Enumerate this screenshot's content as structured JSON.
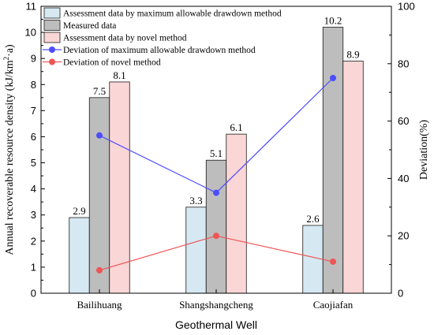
{
  "chart_data": {
    "type": "bar",
    "categories": [
      "Bailihuang",
      "Shangshangcheng",
      "Caojiafan"
    ],
    "xlabel": "Geothermal Well",
    "ylabel": "Annual recoverable resource density",
    "ylabel_unit_base": "kJ/km",
    "ylabel_unit_sup": "2",
    "ylabel_unit_tail": "·a",
    "y2label": "Deviation(%)",
    "ylim": [
      0,
      11
    ],
    "y2lim": [
      0,
      100
    ],
    "yticks": [
      "0",
      "1",
      "2",
      "3",
      "4",
      "5",
      "6",
      "7",
      "8",
      "9",
      "10",
      "11"
    ],
    "y2ticks": [
      "0",
      "20",
      "40",
      "60",
      "80",
      "100"
    ],
    "grid": false,
    "legend_position": "top-left",
    "bar_series": [
      {
        "name": "Assessment data by maximum allowable drawdown method",
        "values": [
          2.9,
          3.3,
          2.6
        ],
        "labels": [
          "2.9",
          "3.3",
          "2.6"
        ],
        "fill": "#d6e9f2",
        "stroke": "#1a1a1a"
      },
      {
        "name": "Measured data",
        "values": [
          7.5,
          5.1,
          10.2
        ],
        "labels": [
          "7.5",
          "5.1",
          "10.2"
        ],
        "fill": "#bdbdbd",
        "stroke": "#1a1a1a"
      },
      {
        "name": "Assessment data by novel method",
        "values": [
          8.1,
          6.1,
          8.9
        ],
        "labels": [
          "8.1",
          "6.1",
          "8.9"
        ],
        "fill": "#fbd6d6",
        "stroke": "#1a1a1a"
      }
    ],
    "line_series": [
      {
        "name": "Deviation of maximum allowable drawdown method",
        "axis": "right",
        "values": [
          55,
          35,
          75
        ],
        "color": "#4d4dff"
      },
      {
        "name": "Deviation of novel method",
        "axis": "right",
        "values": [
          8,
          20,
          11
        ],
        "color": "#ee5555"
      }
    ]
  }
}
